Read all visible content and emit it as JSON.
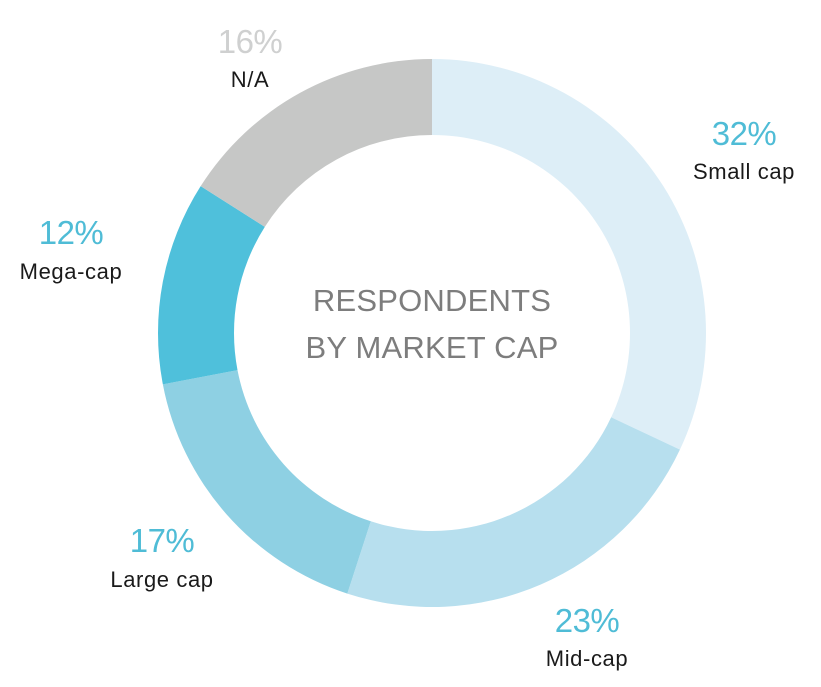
{
  "chart_data": {
    "type": "pie",
    "title": "RESPONDENTS BY MARKET CAP",
    "title_lines": [
      "RESPONDENTS",
      "BY MARKET CAP"
    ],
    "slices": [
      {
        "label": "Small cap",
        "value": 32,
        "value_label": "32%",
        "color": "#ddeef7"
      },
      {
        "label": "Mid-cap",
        "value": 23,
        "value_label": "23%",
        "color": "#b7dfee"
      },
      {
        "label": "Large cap",
        "value": 17,
        "value_label": "17%",
        "color": "#8ed0e3"
      },
      {
        "label": "Mega-cap",
        "value": 12,
        "value_label": "12%",
        "color": "#4fc0db"
      },
      {
        "label": "N/A",
        "value": 16,
        "value_label": "16%",
        "color": "#c6c7c6"
      }
    ],
    "value_label_color": "#4fbcd6",
    "na_value_label_color": "#cfd0d0",
    "legend": "none"
  }
}
